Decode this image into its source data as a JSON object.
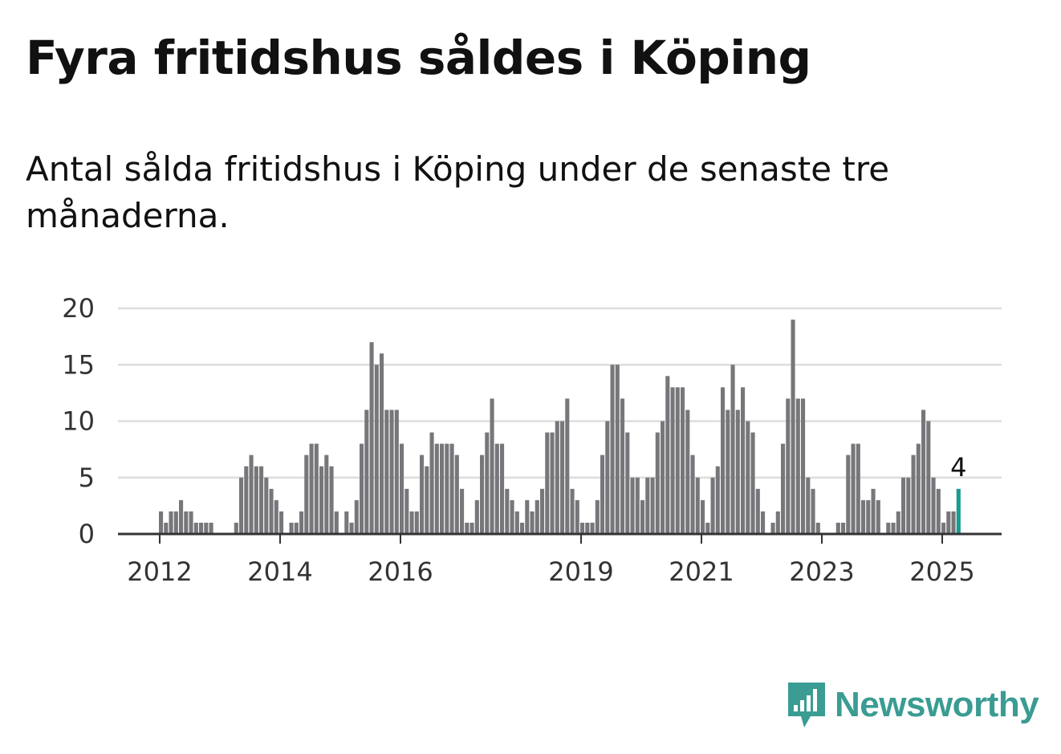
{
  "title": "Fyra fritidshus såldes i Köping",
  "subtitle": "Antal sålda fritidshus i Köping under de senaste tre månaderna.",
  "brand": {
    "name": "Newsworthy",
    "icon": "newsworthy-logo-icon",
    "color": "#3a9c92"
  },
  "colors": {
    "bar": "#77767a",
    "highlight": "#1a9b8f",
    "grid": "#dddddd",
    "axis": "#333333"
  },
  "chart_data": {
    "type": "bar",
    "title": "Fyra fritidshus såldes i Köping",
    "subtitle": "Antal sålda fritidshus i Köping under de senaste tre månaderna.",
    "xlabel": "",
    "ylabel": "",
    "ylim": [
      0,
      20
    ],
    "y_ticks": [
      0,
      5,
      10,
      15,
      20
    ],
    "x_ticks": [
      "2012",
      "2014",
      "2016",
      "2019",
      "2021",
      "2023",
      "2025"
    ],
    "grid": true,
    "start": "2012-01",
    "end": "2025-04",
    "series": [
      {
        "values": [
          2,
          1,
          2,
          2,
          3,
          2,
          2,
          1,
          1,
          1,
          1,
          0,
          0,
          0,
          0,
          1,
          5,
          6,
          7,
          6,
          6,
          5,
          4,
          3,
          2,
          0,
          1,
          1,
          2,
          7,
          8,
          8,
          6,
          7,
          6,
          2,
          0,
          2,
          1,
          3,
          8,
          11,
          17,
          15,
          16,
          11,
          11,
          11,
          8,
          4,
          2,
          2,
          7,
          6,
          9,
          8,
          8,
          8,
          8,
          7,
          4,
          1,
          1,
          3,
          7,
          9,
          12,
          8,
          8,
          4,
          3,
          2,
          1,
          3,
          2,
          3,
          4,
          9,
          9,
          10,
          10,
          12,
          4,
          3,
          1,
          1,
          1,
          3,
          7,
          10,
          15,
          15,
          12,
          9,
          5,
          5,
          3,
          5,
          5,
          9,
          10,
          14,
          13,
          13,
          13,
          11,
          7,
          5,
          3,
          1,
          5,
          6,
          13,
          11,
          15,
          11,
          13,
          10,
          9,
          4,
          2,
          0,
          1,
          2,
          8,
          12,
          19,
          12,
          12,
          5,
          4,
          1,
          0,
          0,
          0,
          1,
          1,
          7,
          8,
          8,
          3,
          3,
          4,
          3,
          0,
          1,
          1,
          2,
          5,
          5,
          7,
          8,
          11,
          10,
          5,
          4,
          1,
          2,
          2,
          4
        ]
      }
    ],
    "annotations": [
      {
        "date": "2025-04",
        "value": 4,
        "text": "4"
      }
    ]
  }
}
